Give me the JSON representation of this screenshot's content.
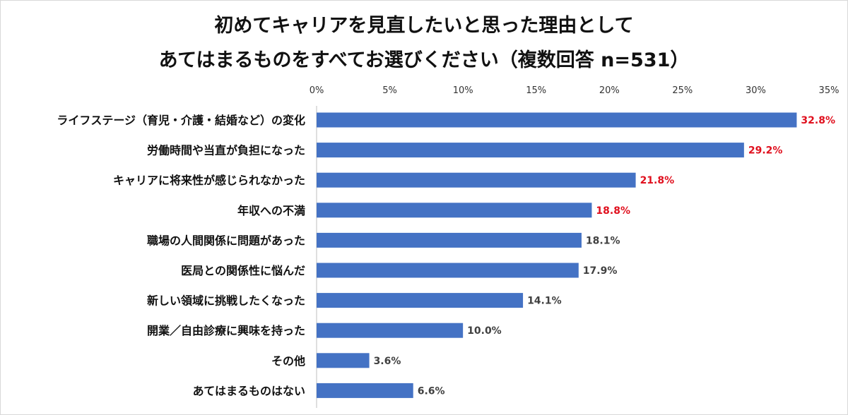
{
  "chart_data": {
    "type": "bar",
    "orientation": "horizontal",
    "title_line1": "初めてキャリアを見直したいと思った理由として",
    "title_line2": "あてはまるものをすべてお選びください（複数回答 n=531）",
    "x_ticks": [
      "0%",
      "5%",
      "10%",
      "15%",
      "20%",
      "25%",
      "30%",
      "35%"
    ],
    "xlim": [
      0,
      35
    ],
    "x_axis_position": "top",
    "grid": false,
    "bar_color": "#4472c4",
    "highlight_color": "#e0101e",
    "label_color": "#404040",
    "categories": [
      "ライフステージ（育児・介護・結婚など）の変化",
      "労働時間や当直が負担になった",
      "キャリアに将来性が感じられなかった",
      "年収への不満",
      "職場の人間関係に問題があった",
      "医局との関係性に悩んだ",
      "新しい領域に挑戦したくなった",
      "開業／自由診療に興味を持った",
      "その他",
      "あてはまるものはない"
    ],
    "values": [
      32.8,
      29.2,
      21.8,
      18.8,
      18.1,
      17.9,
      14.1,
      10.0,
      3.6,
      6.6
    ],
    "value_labels": [
      "32.8%",
      "29.2%",
      "21.8%",
      "18.8%",
      "18.1%",
      "17.9%",
      "14.1%",
      "10.0%",
      "3.6%",
      "6.6%"
    ],
    "highlighted": [
      true,
      true,
      true,
      true,
      false,
      false,
      false,
      false,
      false,
      false
    ]
  }
}
